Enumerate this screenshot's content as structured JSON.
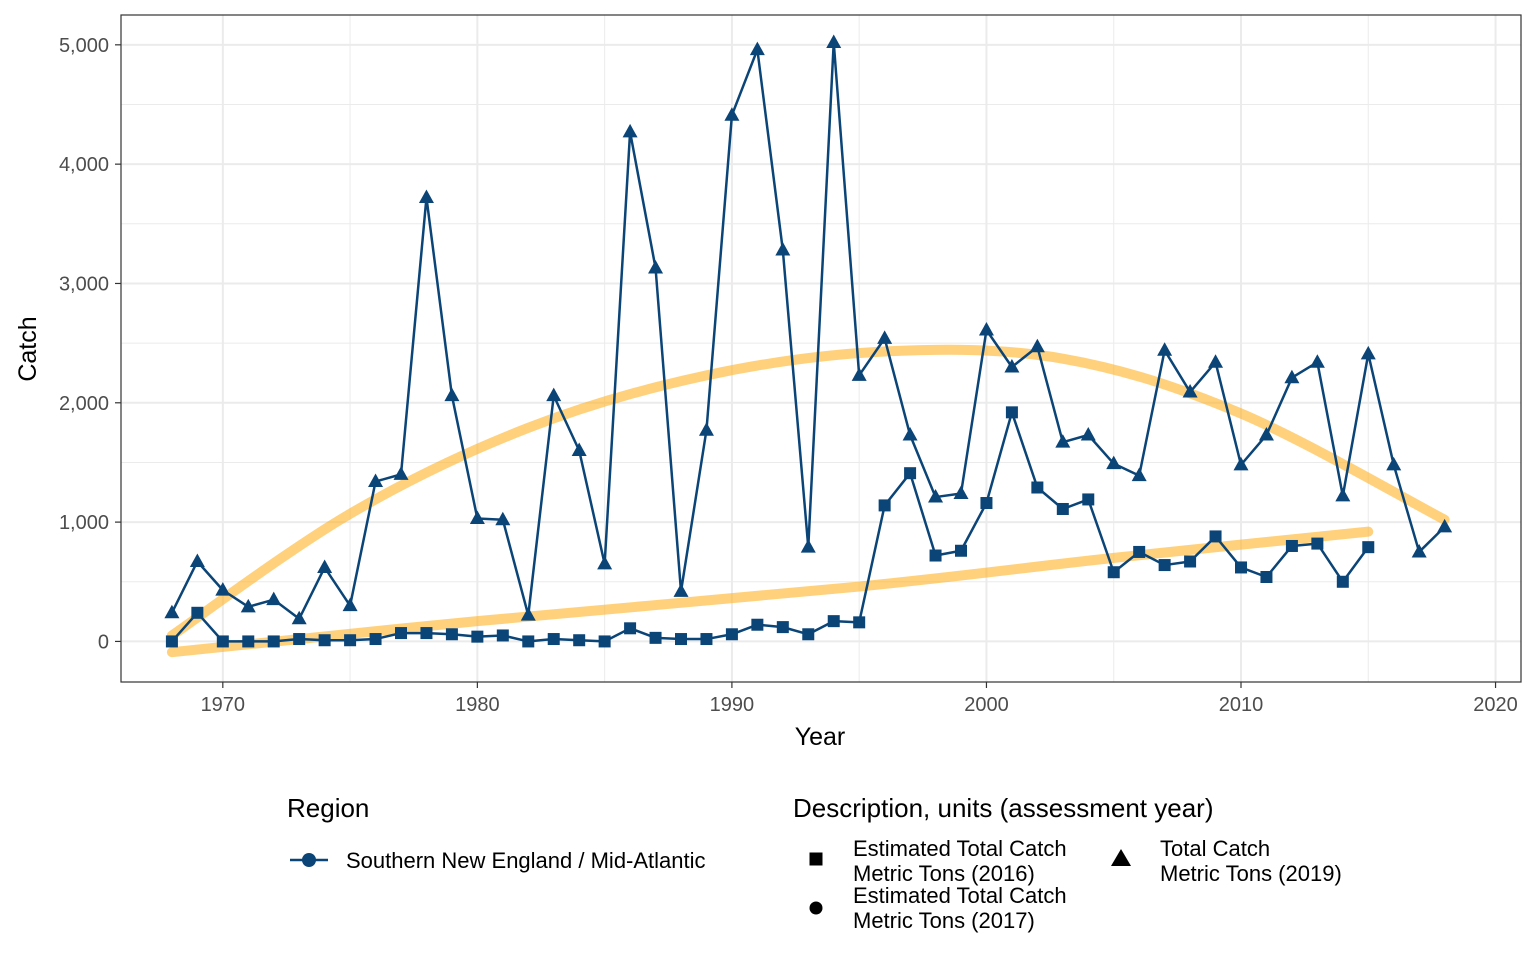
{
  "chart_data": {
    "type": "line",
    "xlabel": "Year",
    "ylabel": "Catch",
    "xlim": [
      1966,
      2021
    ],
    "ylim": [
      -340,
      5250
    ],
    "x_ticks": [
      1970,
      1980,
      1990,
      2000,
      2010,
      2020
    ],
    "x_tick_labels": [
      "1970",
      "1980",
      "1990",
      "2000",
      "2010",
      "2020"
    ],
    "y_ticks": [
      0,
      1000,
      2000,
      3000,
      4000,
      5000
    ],
    "y_tick_labels": [
      "0",
      "1,000",
      "2,000",
      "3,000",
      "4,000",
      "5,000"
    ],
    "grid": true,
    "legend_position": "bottom",
    "colors": {
      "series": "#0b4477",
      "trend": "#ffb224",
      "grid": "#ebebeb",
      "panel_border": "#333333"
    },
    "legend": {
      "region_title": "Region",
      "region_items": [
        {
          "label": "Southern New England / Mid-Atlantic"
        }
      ],
      "description_title": "Description, units (assessment year)",
      "description_items": [
        {
          "shape": "square",
          "line1": "Estimated Total Catch",
          "line2": "Metric Tons (2016)"
        },
        {
          "shape": "circle",
          "line1": "Estimated Total Catch",
          "line2": "Metric Tons (2017)"
        },
        {
          "shape": "triangle",
          "line1": "Total Catch",
          "line2": "Metric Tons (2019)"
        }
      ]
    },
    "series": [
      {
        "name": "Total Catch Metric Tons (2019)",
        "region": "Southern New England / Mid-Atlantic",
        "marker": "triangle",
        "x": [
          1968,
          1969,
          1970,
          1971,
          1972,
          1973,
          1974,
          1975,
          1976,
          1977,
          1978,
          1979,
          1980,
          1981,
          1982,
          1983,
          1984,
          1985,
          1986,
          1987,
          1988,
          1989,
          1990,
          1991,
          1992,
          1993,
          1994,
          1995,
          1996,
          1997,
          1998,
          1999,
          2000,
          2001,
          2002,
          2003,
          2004,
          2005,
          2006,
          2007,
          2008,
          2009,
          2010,
          2011,
          2012,
          2013,
          2014,
          2015,
          2016,
          2017,
          2018
        ],
        "y": [
          240,
          670,
          430,
          290,
          350,
          190,
          620,
          300,
          1340,
          1400,
          3720,
          2060,
          1030,
          1020,
          220,
          2060,
          1600,
          650,
          4270,
          3130,
          420,
          1770,
          4410,
          4960,
          3280,
          790,
          5020,
          2230,
          2540,
          1730,
          1210,
          1240,
          2610,
          2300,
          2470,
          1670,
          1730,
          1490,
          1390,
          2440,
          2090,
          2340,
          1480,
          1730,
          2210,
          2340,
          1220,
          2410,
          1480,
          750,
          960
        ]
      },
      {
        "name": "Estimated Total Catch Metric Tons (2016)",
        "region": "Southern New England / Mid-Atlantic",
        "marker": "square",
        "x": [
          1968,
          1969,
          1970,
          1971,
          1972,
          1973,
          1974,
          1975,
          1976,
          1977,
          1978,
          1979,
          1980,
          1981,
          1982,
          1983,
          1984,
          1985,
          1986,
          1987,
          1988,
          1989,
          1990,
          1991,
          1992,
          1993,
          1994,
          1995,
          1996,
          1997,
          1998,
          1999,
          2000,
          2001,
          2002,
          2003,
          2004,
          2005,
          2006,
          2007,
          2008,
          2009,
          2010,
          2011,
          2012,
          2013,
          2014,
          2015
        ],
        "y": [
          0,
          240,
          0,
          0,
          0,
          20,
          10,
          10,
          20,
          70,
          70,
          60,
          40,
          50,
          0,
          20,
          10,
          0,
          110,
          30,
          20,
          20,
          60,
          140,
          120,
          60,
          170,
          160,
          1140,
          1410,
          720,
          760,
          1160,
          1920,
          1290,
          1110,
          1190,
          580,
          750,
          640,
          670,
          880,
          620,
          540,
          800,
          820,
          500,
          790
        ]
      }
    ],
    "trend_lines": [
      {
        "x": [
          1968,
          1975,
          1982,
          1989,
          1996,
          2003,
          2010,
          2018
        ],
        "y": [
          50,
          1070,
          1790,
          2230,
          2430,
          2370,
          1910,
          1020
        ]
      },
      {
        "x": [
          1968,
          1980,
          1995,
          2005,
          2015
        ],
        "y": [
          -90,
          170,
          460,
          700,
          920
        ]
      }
    ]
  }
}
